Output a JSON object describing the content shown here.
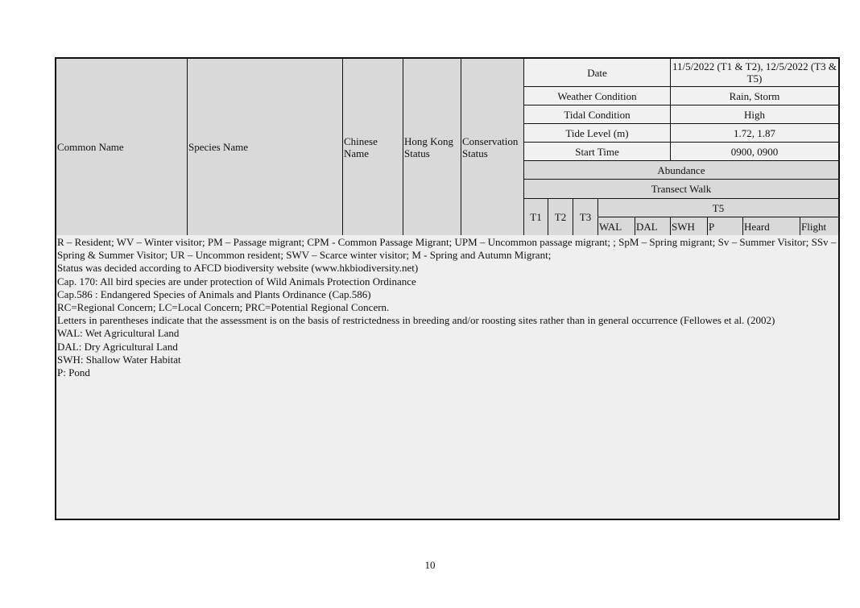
{
  "table": {
    "columns": {
      "common_name": "Common Name",
      "species_name": "Species Name",
      "chinese_name": "Chinese Name",
      "hk_status": "Hong Kong Status",
      "conservation_status": "Conservation Status"
    },
    "survey_info": [
      {
        "label": "Date",
        "value": "11/5/2022 (T1 & T2), 12/5/2022 (T3 & T5)"
      },
      {
        "label": "Weather Condition",
        "value": "Rain, Storm"
      },
      {
        "label": "Tidal Condition",
        "value": "High"
      },
      {
        "label": "Tide Level (m)",
        "value": "1.72, 1.87"
      },
      {
        "label": "Start Time",
        "value": "0900, 0900"
      }
    ],
    "abundance": "Abundance",
    "transect_walk": "Transect Walk",
    "transects": [
      "T1",
      "T2",
      "T3"
    ],
    "t5": "T5",
    "t5_sub": [
      "WAL",
      "DAL",
      "SWH",
      "P",
      "Heard",
      "Flight"
    ]
  },
  "notes": [
    "R – Resident; WV – Winter visitor; PM – Passage migrant; CPM - Common Passage Migrant; UPM – Uncommon passage migrant; ; SpM – Spring migrant; Sv – Summer Visitor; SSv  –  Spring & Summer Visitor;  UR – Uncommon resident; SWV – Scarce winter visitor; M - Spring and Autumn Migrant;",
    "Status was decided according to AFCD biodiversity website (www.hkbiodiversity.net)",
    "Cap. 170: All bird species are under protection of Wild Animals Protection Ordinance",
    "Cap.586 : Endangered Species of Animals and Plants Ordinance (Cap.586)",
    "RC=Regional Concern; LC=Local Concern; PRC=Potential Regional Concern.",
    "Letters in parentheses indicate that the assessment is on the basis of restrictedness in breeding and/or roosting sites rather than in general occurrence (Fellowes et al. (2002)",
    "WAL: Wet Agricultural Land",
    "DAL: Dry Agricultural Land",
    "SWH: Shallow Water Habitat",
    "P: Pond"
  ],
  "page_number": "10"
}
